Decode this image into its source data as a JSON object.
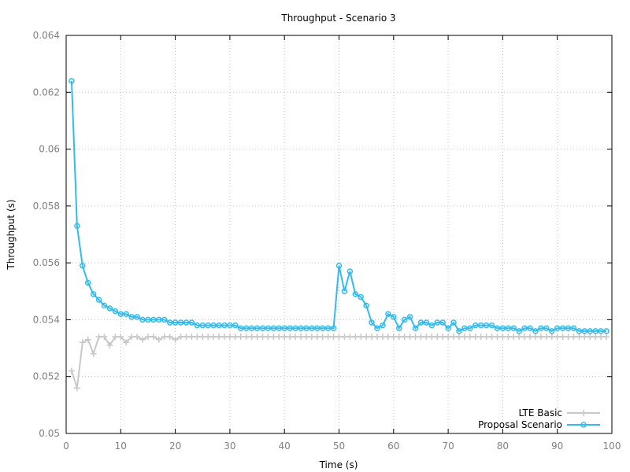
{
  "chart_data": {
    "type": "line",
    "title": "Throughput - Scenario 3",
    "xlabel": "Time (s)",
    "ylabel": "Throughput (s)",
    "xlim": [
      0,
      100
    ],
    "ylim": [
      0.05,
      0.064
    ],
    "x_ticks": [
      "0",
      "10",
      "20",
      "30",
      "40",
      "50",
      "60",
      "70",
      "80",
      "90",
      "100"
    ],
    "y_ticks": [
      "0.05",
      "0.052",
      "0.054",
      "0.056",
      "0.058",
      "0.06",
      "0.062",
      "0.064"
    ],
    "grid": true,
    "legend_position": "bottom-right",
    "x": [
      1,
      2,
      3,
      4,
      5,
      6,
      7,
      8,
      9,
      10,
      11,
      12,
      13,
      14,
      15,
      16,
      17,
      18,
      19,
      20,
      21,
      22,
      23,
      24,
      25,
      26,
      27,
      28,
      29,
      30,
      31,
      32,
      33,
      34,
      35,
      36,
      37,
      38,
      39,
      40,
      41,
      42,
      43,
      44,
      45,
      46,
      47,
      48,
      49,
      50,
      51,
      52,
      53,
      54,
      55,
      56,
      57,
      58,
      59,
      60,
      61,
      62,
      63,
      64,
      65,
      66,
      67,
      68,
      69,
      70,
      71,
      72,
      73,
      74,
      75,
      76,
      77,
      78,
      79,
      80,
      81,
      82,
      83,
      84,
      85,
      86,
      87,
      88,
      89,
      90,
      91,
      92,
      93,
      94,
      95,
      96,
      97,
      98,
      99
    ],
    "series": [
      {
        "name": "LTE Basic",
        "color": "#c8c8c8",
        "marker": "plus",
        "values": [
          0.0522,
          0.0516,
          0.0532,
          0.0533,
          0.0528,
          0.0534,
          0.0534,
          0.0531,
          0.0534,
          0.0534,
          0.0532,
          0.0534,
          0.0534,
          0.0533,
          0.0534,
          0.0534,
          0.0533,
          0.0534,
          0.0534,
          0.0533,
          0.0534,
          0.0534,
          0.0534,
          0.0534,
          0.0534,
          0.0534,
          0.0534,
          0.0534,
          0.0534,
          0.0534,
          0.0534,
          0.0534,
          0.0534,
          0.0534,
          0.0534,
          0.0534,
          0.0534,
          0.0534,
          0.0534,
          0.0534,
          0.0534,
          0.0534,
          0.0534,
          0.0534,
          0.0534,
          0.0534,
          0.0534,
          0.0534,
          0.0534,
          0.0534,
          0.0534,
          0.0534,
          0.0534,
          0.0534,
          0.0534,
          0.0534,
          0.0534,
          0.0534,
          0.0534,
          0.0534,
          0.0534,
          0.0534,
          0.0534,
          0.0534,
          0.0534,
          0.0534,
          0.0534,
          0.0534,
          0.0534,
          0.0534,
          0.0534,
          0.0534,
          0.0534,
          0.0534,
          0.0534,
          0.0534,
          0.0534,
          0.0534,
          0.0534,
          0.0534,
          0.0534,
          0.0534,
          0.0534,
          0.0534,
          0.0534,
          0.0534,
          0.0534,
          0.0534,
          0.0534,
          0.0534,
          0.0534,
          0.0534,
          0.0534,
          0.0534,
          0.0534,
          0.0534,
          0.0534,
          0.0534,
          0.0534
        ]
      },
      {
        "name": "Proposal Scenario",
        "color": "#33bbee",
        "marker": "circle",
        "values": [
          0.0624,
          0.0573,
          0.0559,
          0.0553,
          0.0549,
          0.0547,
          0.0545,
          0.0544,
          0.0543,
          0.0542,
          0.0542,
          0.0541,
          0.0541,
          0.054,
          0.054,
          0.054,
          0.054,
          0.054,
          0.0539,
          0.0539,
          0.0539,
          0.0539,
          0.0539,
          0.0538,
          0.0538,
          0.0538,
          0.0538,
          0.0538,
          0.0538,
          0.0538,
          0.0538,
          0.0537,
          0.0537,
          0.0537,
          0.0537,
          0.0537,
          0.0537,
          0.0537,
          0.0537,
          0.0537,
          0.0537,
          0.0537,
          0.0537,
          0.0537,
          0.0537,
          0.0537,
          0.0537,
          0.0537,
          0.0537,
          0.0559,
          0.055,
          0.0557,
          0.0549,
          0.0548,
          0.0545,
          0.0539,
          0.0537,
          0.0538,
          0.0542,
          0.0541,
          0.0537,
          0.054,
          0.0541,
          0.0537,
          0.0539,
          0.0539,
          0.0538,
          0.0539,
          0.0539,
          0.0537,
          0.0539,
          0.0536,
          0.0537,
          0.0537,
          0.0538,
          0.0538,
          0.0538,
          0.0538,
          0.0537,
          0.0537,
          0.0537,
          0.0537,
          0.0536,
          0.0537,
          0.0537,
          0.0536,
          0.0537,
          0.0537,
          0.0536,
          0.0537,
          0.0537,
          0.0537,
          0.0537,
          0.0536,
          0.0536,
          0.0536,
          0.0536,
          0.0536,
          0.0536
        ]
      }
    ]
  }
}
